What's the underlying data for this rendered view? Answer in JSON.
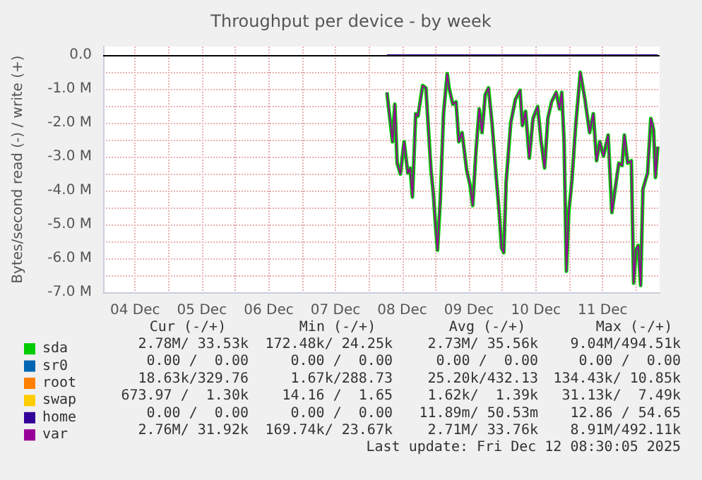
{
  "chart_data": {
    "type": "line",
    "title": "Throughput per device - by week",
    "ylabel": "Bytes/second read (-) / write (+)",
    "xlim": [
      "2025-12-04T00:30",
      "2025-12-12T08:30"
    ],
    "xticks": [
      {
        "value": "2025-12-04T12:00",
        "label": "04 Dec"
      },
      {
        "value": "2025-12-05T00:00",
        "label": null
      },
      {
        "value": "2025-12-05T12:00",
        "label": "05 Dec"
      },
      {
        "value": "2025-12-06T00:00",
        "label": null
      },
      {
        "value": "2025-12-06T12:00",
        "label": "06 Dec"
      },
      {
        "value": "2025-12-07T00:00",
        "label": null
      },
      {
        "value": "2025-12-07T12:00",
        "label": "07 Dec"
      },
      {
        "value": "2025-12-08T00:00",
        "label": null
      },
      {
        "value": "2025-12-08T12:00",
        "label": "08 Dec"
      },
      {
        "value": "2025-12-09T00:00",
        "label": null
      },
      {
        "value": "2025-12-09T12:00",
        "label": "09 Dec"
      },
      {
        "value": "2025-12-10T00:00",
        "label": null
      },
      {
        "value": "2025-12-10T12:00",
        "label": "10 Dec"
      },
      {
        "value": "2025-12-11T00:00",
        "label": null
      },
      {
        "value": "2025-12-11T12:00",
        "label": "11 Dec"
      },
      {
        "value": "2025-12-12T00:00",
        "label": null
      }
    ],
    "ylim": [
      -7000000,
      250000
    ],
    "yticks": [
      {
        "value": -7000000,
        "label": "-7.0 M"
      },
      {
        "value": -6500000,
        "label": null
      },
      {
        "value": -6000000,
        "label": "-6.0 M"
      },
      {
        "value": -5500000,
        "label": null
      },
      {
        "value": -5000000,
        "label": "-5.0 M"
      },
      {
        "value": -4500000,
        "label": null
      },
      {
        "value": -4000000,
        "label": "-4.0 M"
      },
      {
        "value": -3500000,
        "label": null
      },
      {
        "value": -3000000,
        "label": "-3.0 M"
      },
      {
        "value": -2500000,
        "label": null
      },
      {
        "value": -2000000,
        "label": "-2.0 M"
      },
      {
        "value": -1500000,
        "label": null
      },
      {
        "value": -1000000,
        "label": "-1.0 M"
      },
      {
        "value": -500000,
        "label": null
      },
      {
        "value": 0,
        "label": "0.0"
      }
    ],
    "grid": true,
    "legend": "bottom left",
    "ref_lines": [
      {
        "axis": "y",
        "value": 0,
        "color": "#000000"
      }
    ],
    "series": [
      {
        "name": "sda",
        "color": "#00cc00",
        "x": [
          "2025-12-08T06:30",
          "2025-12-08T08:30",
          "2025-12-08T09:20",
          "2025-12-08T10:10",
          "2025-12-08T11:20",
          "2025-12-08T12:40",
          "2025-12-08T14:00",
          "2025-12-08T14:50",
          "2025-12-08T15:40",
          "2025-12-08T16:50",
          "2025-12-08T17:40",
          "2025-12-08T19:20",
          "2025-12-08T20:30",
          "2025-12-08T22:20",
          "2025-12-08T23:10",
          "2025-12-09T00:00",
          "2025-12-09T00:40",
          "2025-12-09T01:40",
          "2025-12-09T02:50",
          "2025-12-09T04:10",
          "2025-12-09T04:50",
          "2025-12-09T06:10",
          "2025-12-09T07:20",
          "2025-12-09T08:20",
          "2025-12-09T09:30",
          "2025-12-09T11:10",
          "2025-12-09T12:20",
          "2025-12-09T13:20",
          "2025-12-09T14:30",
          "2025-12-09T15:40",
          "2025-12-09T16:40",
          "2025-12-09T17:50",
          "2025-12-09T19:00",
          "2025-12-09T20:20",
          "2025-12-09T21:40",
          "2025-12-09T22:50",
          "2025-12-09T23:40",
          "2025-12-10T00:30",
          "2025-12-10T01:20",
          "2025-12-10T03:00",
          "2025-12-10T04:40",
          "2025-12-10T06:20",
          "2025-12-10T07:10",
          "2025-12-10T08:20",
          "2025-12-10T09:40",
          "2025-12-10T11:00",
          "2025-12-10T12:40",
          "2025-12-10T13:50",
          "2025-12-10T15:10",
          "2025-12-10T16:20",
          "2025-12-10T17:40",
          "2025-12-10T19:20",
          "2025-12-10T20:30",
          "2025-12-10T21:20",
          "2025-12-10T22:10",
          "2025-12-10T23:00",
          "2025-12-10T23:50",
          "2025-12-11T01:00",
          "2025-12-11T02:20",
          "2025-12-11T04:00",
          "2025-12-11T05:40",
          "2025-12-11T07:20",
          "2025-12-11T08:40",
          "2025-12-11T09:50",
          "2025-12-11T11:00",
          "2025-12-11T12:20",
          "2025-12-11T14:00",
          "2025-12-11T15:20",
          "2025-12-11T16:30",
          "2025-12-11T17:50",
          "2025-12-11T19:00",
          "2025-12-11T19:50",
          "2025-12-11T21:00",
          "2025-12-11T22:20",
          "2025-12-11T23:10",
          "2025-12-12T00:00",
          "2025-12-12T00:50",
          "2025-12-12T01:40",
          "2025-12-12T02:30",
          "2025-12-12T04:10",
          "2025-12-12T05:20",
          "2025-12-12T06:20",
          "2025-12-12T07:00",
          "2025-12-12T07:50"
        ],
        "values": [
          -1100000,
          -2560000,
          -1450000,
          -3190000,
          -3510000,
          -2560000,
          -3480000,
          -3340000,
          -4190000,
          -1730000,
          -1800000,
          -900000,
          -970000,
          -3400000,
          -4090000,
          -5060000,
          -5760000,
          -4300000,
          -1730000,
          -550000,
          -970000,
          -1450000,
          -1380000,
          -2560000,
          -2290000,
          -3400000,
          -3820000,
          -4440000,
          -2840000,
          -1590000,
          -2290000,
          -1170000,
          -970000,
          -2080000,
          -3480000,
          -4650000,
          -5690000,
          -5830000,
          -3760000,
          -2000000,
          -1310000,
          -1040000,
          -2080000,
          -1660000,
          -3040000,
          -1870000,
          -1520000,
          -2490000,
          -3330000,
          -1870000,
          -1380000,
          -1100000,
          -1590000,
          -1100000,
          -2560000,
          -6380000,
          -4650000,
          -3680000,
          -2080000,
          -510000,
          -1310000,
          -2290000,
          -1730000,
          -3120000,
          -2560000,
          -2980000,
          -2360000,
          -4650000,
          -3960000,
          -3190000,
          -3260000,
          -2360000,
          -3190000,
          -3120000,
          -6730000,
          -5760000,
          -5620000,
          -6800000,
          -3960000,
          -3480000,
          -1870000,
          -2220000,
          -3610000,
          -2700000
        ]
      },
      {
        "name": "sr0",
        "color": "#0066b3"
      },
      {
        "name": "root",
        "color": "#ff8000"
      },
      {
        "name": "swap",
        "color": "#ffcc00"
      },
      {
        "name": "home",
        "color": "#330099",
        "x": [
          "2025-12-08T06:30",
          "2025-12-12T07:50"
        ],
        "values": [
          0,
          0
        ]
      },
      {
        "name": "var",
        "color": "#990099",
        "x": [
          "2025-12-08T06:30",
          "2025-12-08T08:30",
          "2025-12-08T09:20",
          "2025-12-08T10:10",
          "2025-12-08T11:20",
          "2025-12-08T12:40",
          "2025-12-08T14:00",
          "2025-12-08T14:50",
          "2025-12-08T15:40",
          "2025-12-08T16:50",
          "2025-12-08T17:40",
          "2025-12-08T19:20",
          "2025-12-08T20:30",
          "2025-12-08T22:20",
          "2025-12-08T23:10",
          "2025-12-09T00:00",
          "2025-12-09T00:40",
          "2025-12-09T01:40",
          "2025-12-09T02:50",
          "2025-12-09T04:10",
          "2025-12-09T04:50",
          "2025-12-09T06:10",
          "2025-12-09T07:20",
          "2025-12-09T08:20",
          "2025-12-09T09:30",
          "2025-12-09T11:10",
          "2025-12-09T12:20",
          "2025-12-09T13:20",
          "2025-12-09T14:30",
          "2025-12-09T15:40",
          "2025-12-09T16:40",
          "2025-12-09T17:50",
          "2025-12-09T19:00",
          "2025-12-09T20:20",
          "2025-12-09T21:40",
          "2025-12-09T22:50",
          "2025-12-09T23:40",
          "2025-12-10T00:30",
          "2025-12-10T01:20",
          "2025-12-10T03:00",
          "2025-12-10T04:40",
          "2025-12-10T06:20",
          "2025-12-10T07:10",
          "2025-12-10T08:20",
          "2025-12-10T09:40",
          "2025-12-10T11:00",
          "2025-12-10T12:40",
          "2025-12-10T13:50",
          "2025-12-10T15:10",
          "2025-12-10T16:20",
          "2025-12-10T17:40",
          "2025-12-10T19:20",
          "2025-12-10T20:30",
          "2025-12-10T21:20",
          "2025-12-10T22:10",
          "2025-12-10T23:00",
          "2025-12-10T23:50",
          "2025-12-11T01:00",
          "2025-12-11T02:20",
          "2025-12-11T04:00",
          "2025-12-11T05:40",
          "2025-12-11T07:20",
          "2025-12-11T08:40",
          "2025-12-11T09:50",
          "2025-12-11T11:00",
          "2025-12-11T12:20",
          "2025-12-11T14:00",
          "2025-12-11T15:20",
          "2025-12-11T16:30",
          "2025-12-11T17:50",
          "2025-12-11T19:00",
          "2025-12-11T19:50",
          "2025-12-11T21:00",
          "2025-12-11T22:20",
          "2025-12-11T23:10",
          "2025-12-12T00:00",
          "2025-12-12T00:50",
          "2025-12-12T01:40",
          "2025-12-12T02:30",
          "2025-12-12T04:10",
          "2025-12-12T05:20",
          "2025-12-12T06:20",
          "2025-12-12T07:00",
          "2025-12-12T07:50"
        ],
        "values": [
          -1100000,
          -2560000,
          -1450000,
          -3190000,
          -3510000,
          -2560000,
          -3480000,
          -3340000,
          -4190000,
          -1730000,
          -1800000,
          -900000,
          -970000,
          -3400000,
          -4090000,
          -5060000,
          -5760000,
          -4300000,
          -1730000,
          -550000,
          -970000,
          -1450000,
          -1380000,
          -2560000,
          -2290000,
          -3400000,
          -3820000,
          -4440000,
          -2840000,
          -1590000,
          -2290000,
          -1170000,
          -970000,
          -2080000,
          -3480000,
          -4650000,
          -5690000,
          -5830000,
          -3760000,
          -2000000,
          -1310000,
          -1040000,
          -2080000,
          -1660000,
          -3040000,
          -1870000,
          -1520000,
          -2490000,
          -3330000,
          -1870000,
          -1380000,
          -1100000,
          -1590000,
          -1100000,
          -2560000,
          -6380000,
          -4650000,
          -3680000,
          -2080000,
          -510000,
          -1310000,
          -2290000,
          -1730000,
          -3120000,
          -2560000,
          -2980000,
          -2360000,
          -4650000,
          -3960000,
          -3190000,
          -3260000,
          -2360000,
          -3190000,
          -3120000,
          -6730000,
          -5760000,
          -5620000,
          -6800000,
          -3960000,
          -3480000,
          -1870000,
          -2220000,
          -3610000,
          -2700000
        ]
      }
    ],
    "annotations": [
      "Cur (-/+)",
      "Min (-/+)",
      "Avg (-/+)",
      "Max (-/+)",
      "2.78M/ 33.53k",
      "172.48k/ 24.25k",
      "2.73M/ 35.56k",
      "9.04M/494.51k",
      "0.00 /  0.00",
      "0.00 /  0.00",
      "0.00 /  0.00",
      "0.00 /  0.00",
      "18.63k/329.76",
      "1.67k/288.73",
      "25.20k/432.13",
      "134.43k/ 10.85k",
      "673.97 /  1.30k",
      "14.16 /  1.65",
      "1.62k/  1.39k",
      "31.13k/  7.49k",
      "0.00 /  0.00",
      "0.00 /  0.00",
      "11.89m/ 50.53m",
      "12.86 / 54.65",
      "2.76M/ 31.92k",
      "169.74k/ 23.67k",
      "2.71M/ 33.76k",
      "8.91M/492.11k",
      "Last update: Fri Dec 12 08:30:05 2025"
    ]
  }
}
